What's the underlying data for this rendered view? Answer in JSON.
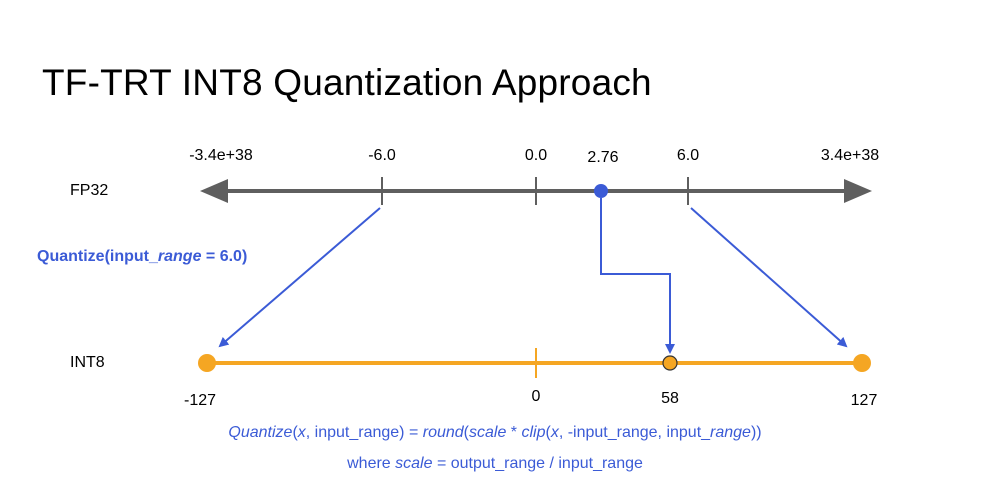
{
  "title": "TF-TRT INT8 Quantization Approach",
  "fp32": {
    "label": "FP32",
    "ticks": [
      "-3.4e+38",
      "-6.0",
      "0.0",
      "2.76",
      "6.0",
      "3.4e+38"
    ]
  },
  "int8": {
    "label": "INT8",
    "ticks": [
      "-127",
      "0",
      "58",
      "127"
    ]
  },
  "quantize_label": {
    "prefix": "Quantize(input_",
    "italic": "range",
    "suffix": " = 6.0)"
  },
  "formula": {
    "f1": "Quantize",
    "f2": "(",
    "f3": "x",
    "f4": ", input_range) = ",
    "f5": "round",
    "f6": "(",
    "f7": "scale",
    "f8": " * ",
    "f9": "clip",
    "f10": "(",
    "f11": "x",
    "f12": ", -input_range, input_",
    "f13": "range",
    "f14": "))"
  },
  "where": {
    "w1": "where ",
    "w2": "scale",
    "w3": " = output_range / input_range"
  },
  "colors": {
    "axis_gray": "#5f5f5f",
    "arrow_blue": "#3b5bd6",
    "int8_orange": "#f5a623"
  }
}
